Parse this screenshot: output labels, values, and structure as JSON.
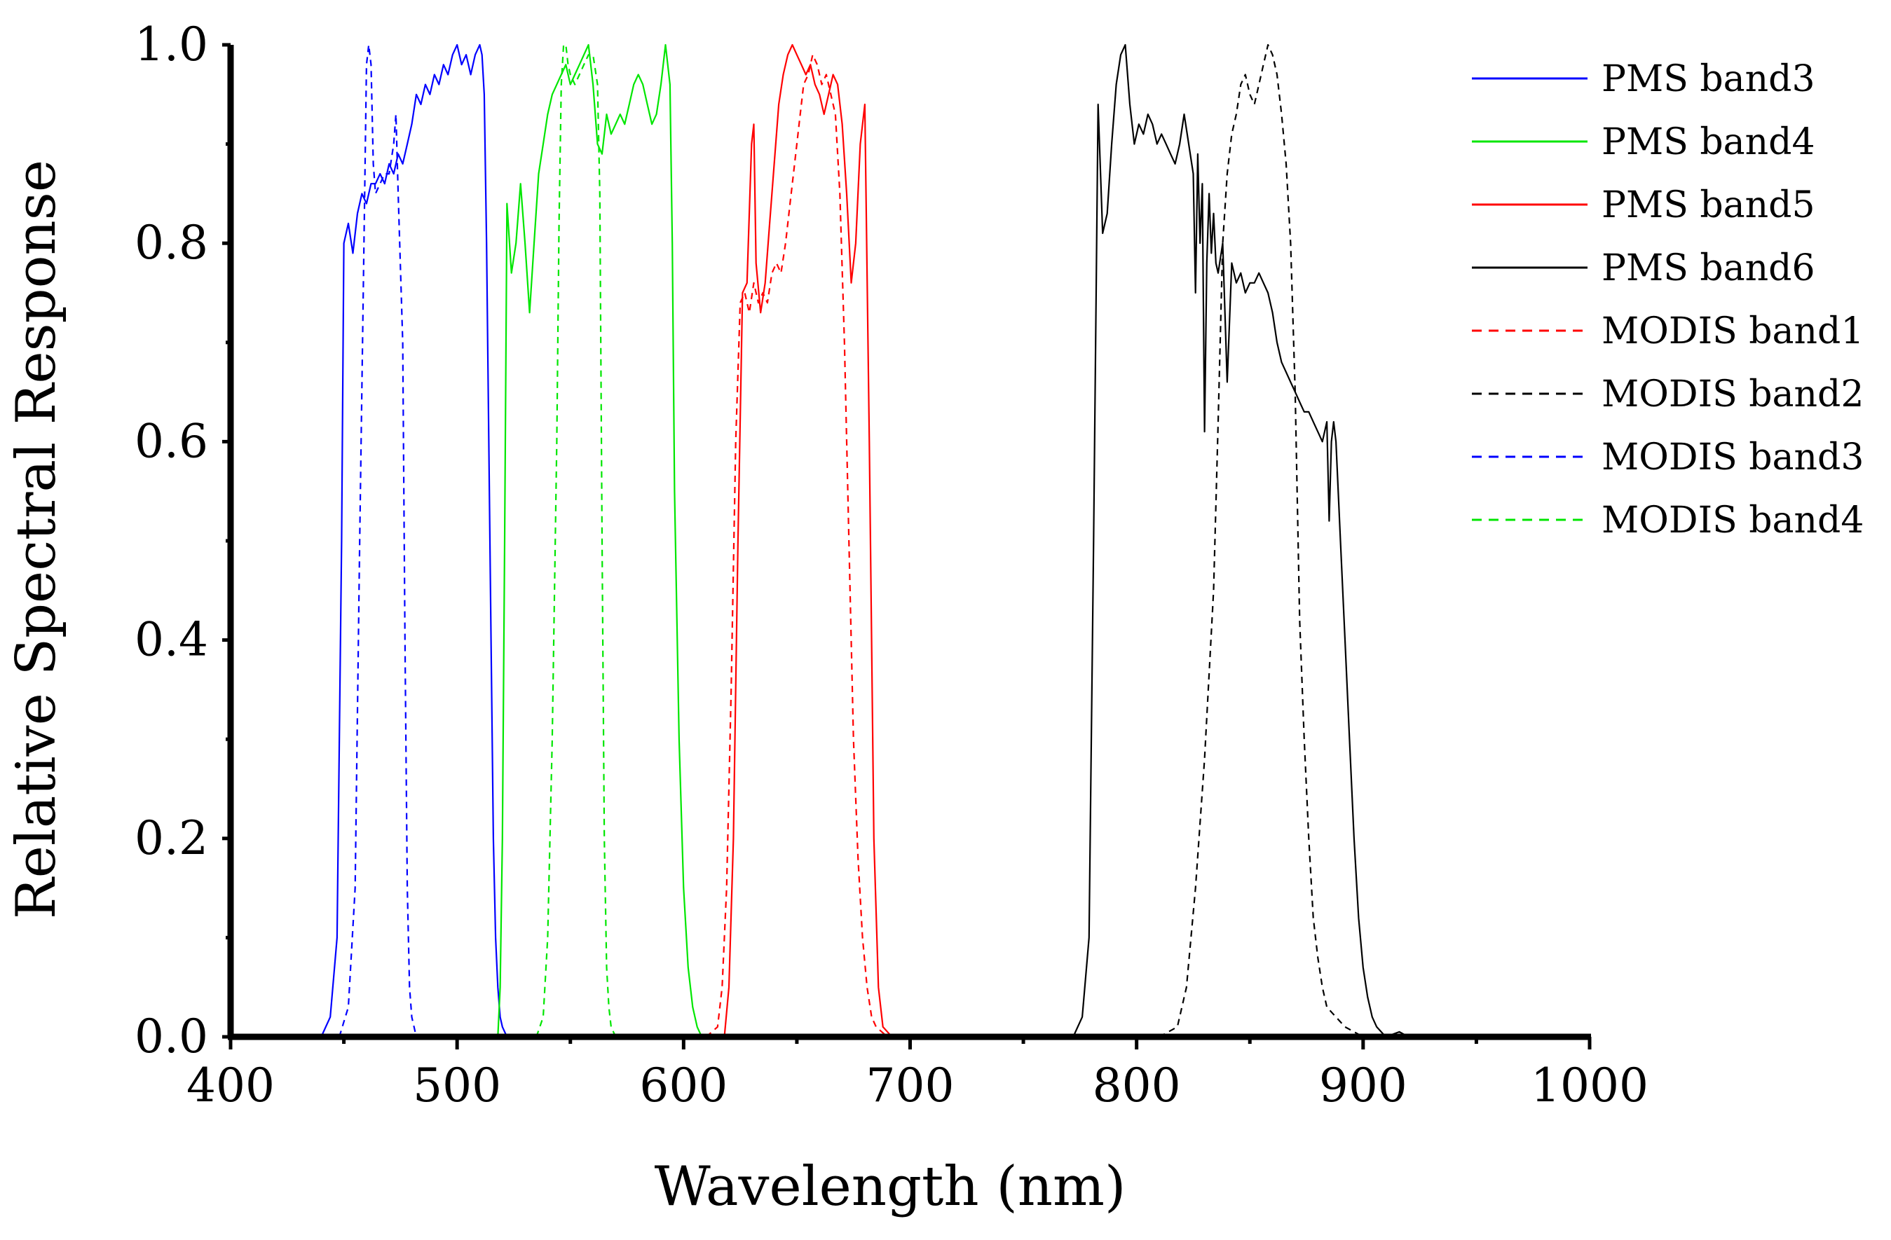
{
  "chart_data": {
    "type": "line",
    "title": "",
    "xlabel": "Wavelength (nm)",
    "ylabel": "Relative Spectral Response",
    "xlim": [
      400,
      1000
    ],
    "ylim": [
      0.0,
      1.0
    ],
    "xticks": [
      400,
      500,
      600,
      700,
      800,
      900,
      1000
    ],
    "xtick_labels": [
      "400",
      "500",
      "600",
      "700",
      "800",
      "900",
      "1000"
    ],
    "yticks": [
      0.0,
      0.2,
      0.4,
      0.6,
      0.8,
      1.0
    ],
    "ytick_labels": [
      "0.0",
      "0.2",
      "0.4",
      "0.6",
      "0.8",
      "1.0"
    ],
    "legend_position": "top-right",
    "series": [
      {
        "name": "PMS band3",
        "color": "#0000ff",
        "dash": "solid",
        "x": [
          400,
          440,
          444,
          447,
          449,
          450,
          452,
          454,
          456,
          458,
          460,
          462,
          464,
          466,
          468,
          470,
          472,
          474,
          476,
          478,
          480,
          482,
          484,
          486,
          488,
          490,
          492,
          494,
          496,
          498,
          500,
          502,
          504,
          506,
          508,
          510,
          511,
          512,
          513,
          514,
          515,
          516,
          517,
          518,
          519,
          520,
          522,
          530
        ],
        "y": [
          0,
          0,
          0.02,
          0.1,
          0.5,
          0.8,
          0.82,
          0.79,
          0.83,
          0.85,
          0.84,
          0.86,
          0.86,
          0.87,
          0.86,
          0.88,
          0.87,
          0.89,
          0.88,
          0.9,
          0.92,
          0.95,
          0.94,
          0.96,
          0.95,
          0.97,
          0.96,
          0.98,
          0.97,
          0.99,
          1.0,
          0.98,
          0.99,
          0.97,
          0.99,
          1.0,
          0.99,
          0.95,
          0.8,
          0.6,
          0.4,
          0.2,
          0.1,
          0.05,
          0.02,
          0.01,
          0,
          0
        ]
      },
      {
        "name": "PMS band4",
        "color": "#00e600",
        "dash": "solid",
        "x": [
          510,
          518,
          519,
          520,
          521,
          522,
          524,
          526,
          528,
          530,
          532,
          534,
          536,
          538,
          540,
          542,
          544,
          546,
          548,
          550,
          552,
          554,
          556,
          558,
          560,
          562,
          564,
          566,
          568,
          570,
          572,
          574,
          576,
          578,
          580,
          582,
          584,
          586,
          588,
          590,
          592,
          594,
          595,
          596,
          598,
          600,
          602,
          604,
          606,
          608,
          612
        ],
        "y": [
          0,
          0,
          0.05,
          0.2,
          0.5,
          0.84,
          0.77,
          0.8,
          0.86,
          0.8,
          0.73,
          0.8,
          0.87,
          0.9,
          0.93,
          0.95,
          0.96,
          0.97,
          0.98,
          0.96,
          0.97,
          0.98,
          0.99,
          1.0,
          0.96,
          0.9,
          0.89,
          0.93,
          0.91,
          0.92,
          0.93,
          0.92,
          0.94,
          0.96,
          0.97,
          0.96,
          0.94,
          0.92,
          0.93,
          0.96,
          1.0,
          0.96,
          0.8,
          0.55,
          0.3,
          0.15,
          0.07,
          0.03,
          0.01,
          0,
          0
        ]
      },
      {
        "name": "PMS band5",
        "color": "#ff0000",
        "dash": "solid",
        "x": [
          610,
          618,
          620,
          622,
          624,
          626,
          628,
          630,
          631,
          632,
          634,
          636,
          638,
          640,
          642,
          644,
          646,
          648,
          650,
          652,
          654,
          656,
          658,
          660,
          662,
          664,
          666,
          668,
          670,
          672,
          674,
          676,
          678,
          680,
          682,
          684,
          686,
          688,
          692
        ],
        "y": [
          0,
          0,
          0.05,
          0.2,
          0.5,
          0.75,
          0.76,
          0.9,
          0.92,
          0.78,
          0.73,
          0.76,
          0.82,
          0.88,
          0.94,
          0.97,
          0.99,
          1.0,
          0.99,
          0.98,
          0.97,
          0.98,
          0.96,
          0.95,
          0.93,
          0.95,
          0.97,
          0.96,
          0.92,
          0.85,
          0.76,
          0.8,
          0.9,
          0.94,
          0.6,
          0.2,
          0.05,
          0.01,
          0
        ]
      },
      {
        "name": "PMS band6",
        "color": "#000000",
        "dash": "solid",
        "x": [
          760,
          772,
          776,
          779,
          781,
          783,
          785,
          787,
          789,
          791,
          793,
          795,
          797,
          799,
          801,
          803,
          805,
          807,
          809,
          811,
          813,
          815,
          817,
          819,
          821,
          823,
          825,
          826,
          827,
          828,
          829,
          830,
          831,
          832,
          833,
          834,
          835,
          836,
          838,
          840,
          842,
          844,
          846,
          848,
          850,
          852,
          854,
          856,
          858,
          860,
          862,
          864,
          866,
          868,
          870,
          872,
          874,
          876,
          878,
          880,
          882,
          884,
          885,
          886,
          887,
          888,
          889,
          890,
          892,
          894,
          896,
          898,
          900,
          902,
          904,
          906,
          910,
          916,
          920,
          930
        ],
        "y": [
          0,
          0,
          0.02,
          0.1,
          0.5,
          0.94,
          0.81,
          0.83,
          0.9,
          0.96,
          0.99,
          1.0,
          0.94,
          0.9,
          0.92,
          0.91,
          0.93,
          0.92,
          0.9,
          0.91,
          0.9,
          0.89,
          0.88,
          0.9,
          0.93,
          0.9,
          0.87,
          0.75,
          0.89,
          0.8,
          0.86,
          0.61,
          0.78,
          0.85,
          0.79,
          0.83,
          0.78,
          0.77,
          0.8,
          0.66,
          0.78,
          0.76,
          0.77,
          0.75,
          0.76,
          0.76,
          0.77,
          0.76,
          0.75,
          0.73,
          0.7,
          0.68,
          0.67,
          0.66,
          0.65,
          0.64,
          0.63,
          0.63,
          0.62,
          0.61,
          0.6,
          0.62,
          0.52,
          0.6,
          0.62,
          0.6,
          0.55,
          0.5,
          0.4,
          0.3,
          0.2,
          0.12,
          0.07,
          0.04,
          0.02,
          0.01,
          0,
          0.005,
          0,
          0
        ]
      },
      {
        "name": "MODIS band1",
        "color": "#ff0000",
        "dash": "dashed",
        "x": [
          610,
          615,
          617,
          619,
          621,
          623,
          625,
          627,
          629,
          631,
          633,
          635,
          637,
          639,
          641,
          643,
          645,
          647,
          649,
          651,
          653,
          655,
          657,
          659,
          661,
          663,
          665,
          667,
          669,
          671,
          673,
          675,
          677,
          679,
          681,
          683,
          685,
          690
        ],
        "y": [
          0,
          0.01,
          0.05,
          0.15,
          0.35,
          0.6,
          0.74,
          0.75,
          0.73,
          0.76,
          0.74,
          0.75,
          0.74,
          0.77,
          0.78,
          0.77,
          0.8,
          0.84,
          0.88,
          0.92,
          0.96,
          0.97,
          0.99,
          0.98,
          0.96,
          0.97,
          0.95,
          0.93,
          0.85,
          0.7,
          0.5,
          0.3,
          0.18,
          0.1,
          0.05,
          0.02,
          0.01,
          0
        ]
      },
      {
        "name": "MODIS band2",
        "color": "#000000",
        "dash": "dashed",
        "x": [
          810,
          818,
          822,
          826,
          830,
          834,
          836,
          838,
          840,
          842,
          844,
          846,
          848,
          850,
          852,
          854,
          856,
          858,
          860,
          862,
          864,
          866,
          868,
          870,
          872,
          874,
          876,
          878,
          880,
          882,
          884,
          888,
          892,
          896,
          900,
          905,
          910
        ],
        "y": [
          0,
          0.01,
          0.05,
          0.15,
          0.28,
          0.45,
          0.62,
          0.8,
          0.87,
          0.91,
          0.93,
          0.96,
          0.97,
          0.95,
          0.94,
          0.96,
          0.98,
          1.0,
          0.99,
          0.97,
          0.93,
          0.88,
          0.8,
          0.65,
          0.42,
          0.3,
          0.2,
          0.12,
          0.08,
          0.05,
          0.03,
          0.02,
          0.01,
          0.005,
          0,
          0,
          0
        ]
      },
      {
        "name": "MODIS band3",
        "color": "#0000ff",
        "dash": "dashed",
        "x": [
          448,
          452,
          455,
          457,
          459,
          460,
          461,
          462,
          463,
          464,
          466,
          468,
          470,
          472,
          473,
          474,
          476,
          477,
          478,
          479,
          480,
          482
        ],
        "y": [
          0,
          0.03,
          0.15,
          0.5,
          0.82,
          0.98,
          1.0,
          0.98,
          0.88,
          0.85,
          0.86,
          0.87,
          0.87,
          0.9,
          0.93,
          0.85,
          0.7,
          0.4,
          0.15,
          0.05,
          0.02,
          0
        ]
      },
      {
        "name": "MODIS band4",
        "color": "#00e600",
        "dash": "dashed",
        "x": [
          535,
          538,
          540,
          542,
          544,
          545,
          546,
          547,
          548,
          549,
          550,
          552,
          554,
          556,
          558,
          560,
          562,
          563,
          564,
          565,
          566,
          567,
          568,
          570,
          572
        ],
        "y": [
          0,
          0.02,
          0.1,
          0.3,
          0.6,
          0.82,
          0.96,
          1.0,
          1.0,
          0.98,
          0.97,
          0.96,
          0.97,
          0.98,
          0.99,
          0.99,
          0.96,
          0.85,
          0.5,
          0.2,
          0.07,
          0.03,
          0.01,
          0,
          0
        ]
      }
    ]
  }
}
